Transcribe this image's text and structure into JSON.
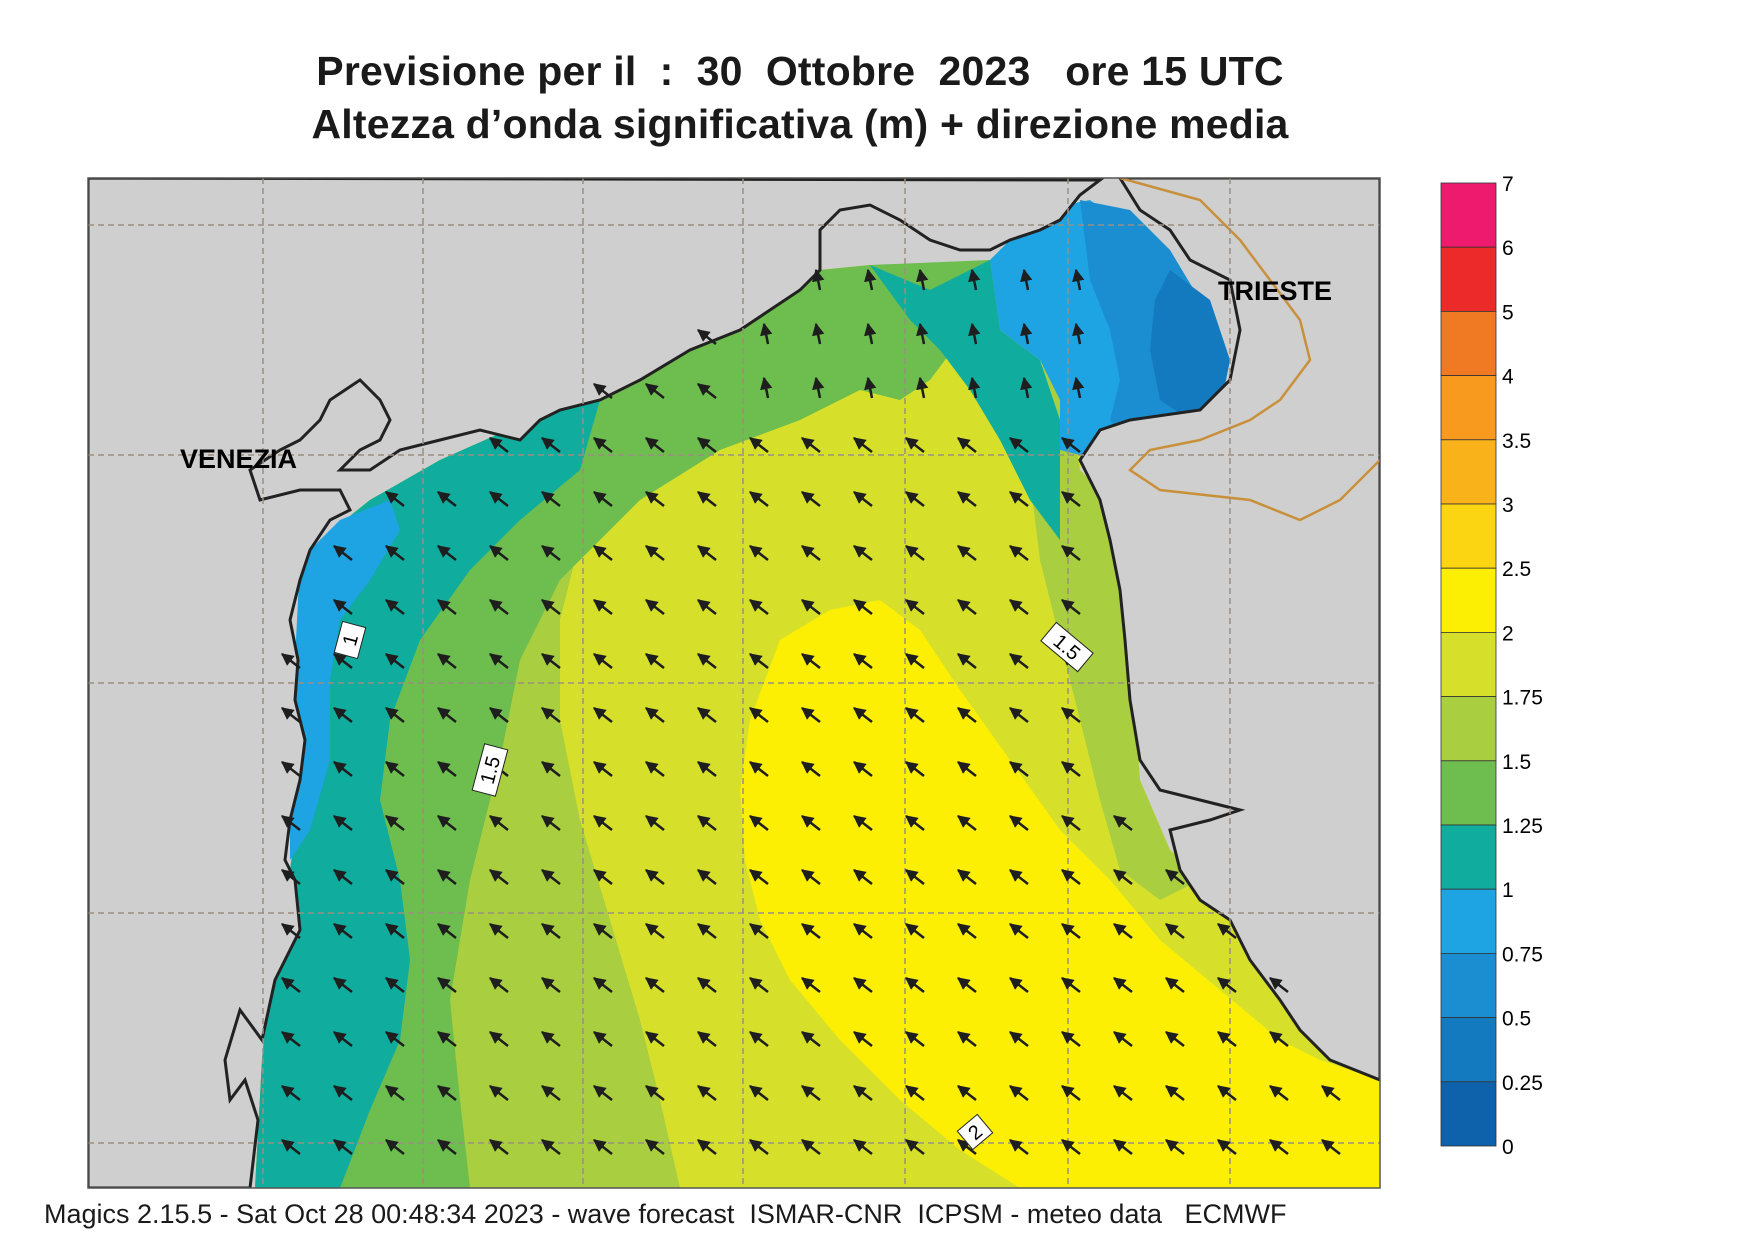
{
  "title": {
    "line1": "Previsione per il  :  30  Ottobre  2023   ore 15 UTC",
    "line2": "Altezza d’onda significativa (m) + direzione media"
  },
  "map": {
    "cities": [
      {
        "name": "VENEZIA"
      },
      {
        "name": "TRIESTE"
      }
    ],
    "contour_labels": [
      "1",
      "1.5",
      "1.5",
      "2"
    ],
    "arrow_direction": "north-west",
    "colors": {
      "land": "#cfcfcf",
      "coast": "#222222",
      "border": "#c8903a",
      "grid": "#9a8f80",
      "arrow": "#1e1e1e"
    }
  },
  "legend": {
    "labels": [
      "7",
      "6",
      "5",
      "4",
      "3.5",
      "3",
      "2.5",
      "2",
      "1.75",
      "1.5",
      "1.25",
      "1",
      "0.75",
      "0.5",
      "0.25",
      "0"
    ],
    "colors": [
      "#ee1a6e",
      "#ec2a2a",
      "#f07a24",
      "#f79a1e",
      "#f9b21a",
      "#fcd512",
      "#fdef04",
      "#d6e02a",
      "#a9ce3f",
      "#6ebd4f",
      "#10ac9e",
      "#1ea3e3",
      "#1a8ed0",
      "#137ac0",
      "#0e62ac"
    ]
  },
  "footer": "Magics 2.15.5 - Sat Oct 28 00:48:34 2023 - wave forecast  ISMAR-CNR  ICPSM - meteo data   ECMWF"
}
